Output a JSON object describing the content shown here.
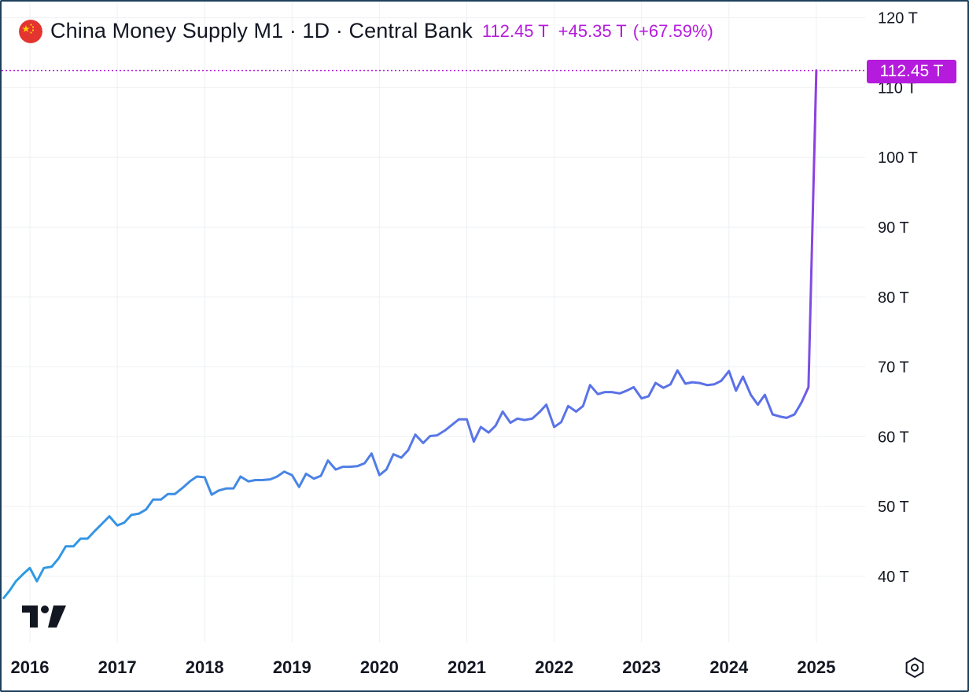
{
  "header": {
    "title": "China Money Supply M1 · 1D · Central Bank",
    "last_value": "112.45 T",
    "change": "+45.35 T",
    "change_percent": "(+67.59%)",
    "flag_icon": "china-flag-icon"
  },
  "price_badge": {
    "label": "112.45 T",
    "color": "#b51bdc"
  },
  "colors": {
    "line_start": "#2b9de3",
    "line_mid": "#5a76e6",
    "line_end": "#b51bdc",
    "grid": "#eef0f3",
    "price_line": "#b51bdc"
  },
  "chart_data": {
    "type": "line",
    "title": "China Money Supply M1",
    "y_unit": "T",
    "ylim": [
      32,
      120
    ],
    "xlim": [
      2016.0,
      2025.7
    ],
    "y_ticks": [
      {
        "value": 40,
        "label": "40 T"
      },
      {
        "value": 50,
        "label": "50 T"
      },
      {
        "value": 60,
        "label": "60 T"
      },
      {
        "value": 70,
        "label": "70 T"
      },
      {
        "value": 80,
        "label": "80 T"
      },
      {
        "value": 90,
        "label": "90 T"
      },
      {
        "value": 100,
        "label": "100 T"
      },
      {
        "value": 110,
        "label": "110 T"
      },
      {
        "value": 120,
        "label": "120 T"
      }
    ],
    "x_ticks": [
      {
        "value": 2016,
        "label": "2016"
      },
      {
        "value": 2017,
        "label": "2017"
      },
      {
        "value": 2018,
        "label": "2018"
      },
      {
        "value": 2019,
        "label": "2019"
      },
      {
        "value": 2020,
        "label": "2020"
      },
      {
        "value": 2021,
        "label": "2021"
      },
      {
        "value": 2022,
        "label": "2022"
      },
      {
        "value": 2023,
        "label": "2023"
      },
      {
        "value": 2024,
        "label": "2024"
      },
      {
        "value": 2025,
        "label": "2025"
      }
    ],
    "grid": true,
    "last_value": 112.45,
    "series": [
      {
        "x": [
          2015.7,
          2015.77,
          2015.84,
          2015.92,
          2016.0,
          2016.08,
          2016.16,
          2016.25,
          2016.33,
          2016.41,
          2016.5,
          2016.58,
          2016.66,
          2016.75,
          2016.83,
          2016.91,
          2017.0,
          2017.08,
          2017.16,
          2017.25,
          2017.33,
          2017.41,
          2017.5,
          2017.58,
          2017.66,
          2017.75,
          2017.83,
          2017.91,
          2018.0,
          2018.08,
          2018.16,
          2018.25,
          2018.33,
          2018.41,
          2018.5,
          2018.58,
          2018.66,
          2018.75,
          2018.83,
          2018.91,
          2019.0,
          2019.08,
          2019.16,
          2019.25,
          2019.33,
          2019.41,
          2019.5,
          2019.58,
          2019.66,
          2019.75,
          2019.83,
          2019.91,
          2020.0,
          2020.08,
          2020.16,
          2020.25,
          2020.33,
          2020.41,
          2020.5,
          2020.58,
          2020.66,
          2020.75,
          2020.83,
          2020.91,
          2021.0,
          2021.08,
          2021.16,
          2021.25,
          2021.33,
          2021.41,
          2021.5,
          2021.58,
          2021.66,
          2021.75,
          2021.83,
          2021.91,
          2022.0,
          2022.08,
          2022.16,
          2022.25,
          2022.33,
          2022.41,
          2022.5,
          2022.58,
          2022.66,
          2022.75,
          2022.83,
          2022.91,
          2023.0,
          2023.08,
          2023.16,
          2023.25,
          2023.33,
          2023.41,
          2023.5,
          2023.58,
          2023.66,
          2023.75,
          2023.83,
          2023.91,
          2024.0,
          2024.08,
          2024.16,
          2024.25,
          2024.33,
          2024.41,
          2024.5,
          2024.58,
          2024.66,
          2024.75,
          2024.83,
          2024.91,
          2025.0
        ],
        "values": [
          36.9,
          38.0,
          39.3,
          40.3,
          41.2,
          39.3,
          41.2,
          41.4,
          42.6,
          44.3,
          44.3,
          45.4,
          45.4,
          46.6,
          47.6,
          48.6,
          47.3,
          47.7,
          48.8,
          49.0,
          49.6,
          51.0,
          51.0,
          51.8,
          51.8,
          52.7,
          53.6,
          54.3,
          54.2,
          51.7,
          52.3,
          52.6,
          52.6,
          54.3,
          53.6,
          53.8,
          53.8,
          53.9,
          54.3,
          55.0,
          54.5,
          52.8,
          54.7,
          54.0,
          54.4,
          56.6,
          55.3,
          55.7,
          55.7,
          55.8,
          56.2,
          57.6,
          54.5,
          55.3,
          57.5,
          57.0,
          58.1,
          60.3,
          59.1,
          60.1,
          60.2,
          60.9,
          61.7,
          62.5,
          62.5,
          59.3,
          61.4,
          60.6,
          61.6,
          63.6,
          62.0,
          62.6,
          62.4,
          62.6,
          63.5,
          64.6,
          61.4,
          62.1,
          64.4,
          63.6,
          64.4,
          67.4,
          66.1,
          66.4,
          66.4,
          66.2,
          66.6,
          67.1,
          65.5,
          65.8,
          67.7,
          67.0,
          67.5,
          69.5,
          67.6,
          67.8,
          67.7,
          67.4,
          67.5,
          68.0,
          69.4,
          66.6,
          68.6,
          66.0,
          64.6,
          66.0,
          63.2,
          62.9,
          62.7,
          63.2,
          64.9,
          67.1,
          112.45
        ]
      }
    ]
  },
  "tooling": {
    "logo_icon": "tradingview-logo-icon",
    "settings_icon": "settings-hexagon-icon"
  }
}
